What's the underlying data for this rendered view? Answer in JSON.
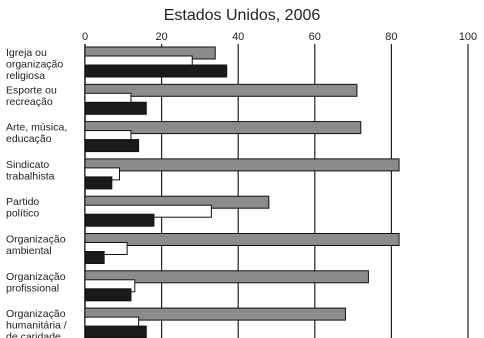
{
  "chart_data": {
    "type": "bar",
    "orientation": "horizontal",
    "title": "Estados Unidos, 2006",
    "xlim": [
      0,
      100
    ],
    "x_ticks": [
      "0",
      "20",
      "40",
      "60",
      "80",
      "100"
    ],
    "grid": true,
    "categories": [
      [
        "Igreja ou",
        "organização",
        "religiosa"
      ],
      [
        "Esporte ou",
        "recreação"
      ],
      [
        "Arte, música,",
        "educação"
      ],
      [
        "Sindicato",
        "trabalhista"
      ],
      [
        "Partido",
        "político"
      ],
      [
        "Organização",
        "ambiental"
      ],
      [
        "Organização",
        "profissional"
      ],
      [
        "Organização",
        "humanitária /",
        "de caridade"
      ]
    ],
    "series": [
      {
        "values": [
          34,
          71,
          72,
          82,
          48,
          82,
          74,
          68
        ],
        "color": "#8c8c8c"
      },
      {
        "values": [
          28,
          12,
          12,
          9,
          33,
          11,
          13,
          14
        ],
        "color": "#ffffff"
      },
      {
        "values": [
          37,
          16,
          14,
          7,
          18,
          5,
          12,
          16
        ],
        "color": "#1a1a1a"
      }
    ]
  }
}
